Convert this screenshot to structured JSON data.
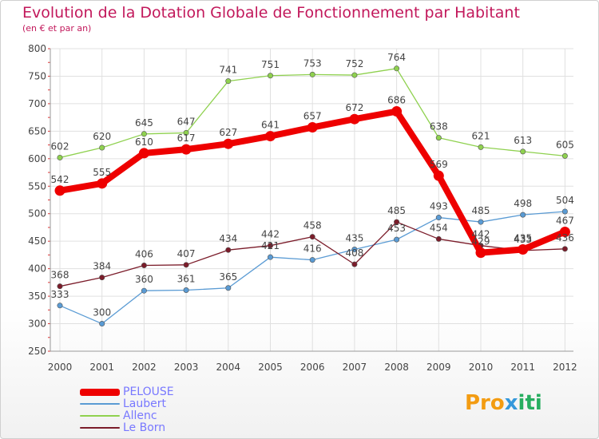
{
  "title": "Evolution de la Dotation Globale de Fonctionnement par Habitant",
  "subtitle": "(en € et par an)",
  "logo": {
    "text": "Proxiti"
  },
  "chart_data": {
    "type": "line",
    "title": "Evolution de la Dotation Globale de Fonctionnement par Habitant",
    "ylabel": "(en € et par an)",
    "xlabel": "",
    "categories": [
      "2000",
      "2001",
      "2002",
      "2003",
      "2004",
      "2005",
      "2006",
      "2007",
      "2008",
      "2009",
      "2010",
      "2011",
      "2012"
    ],
    "ylim": [
      250,
      800
    ],
    "yticks": [
      250,
      300,
      350,
      400,
      450,
      500,
      550,
      600,
      650,
      700,
      750,
      800
    ],
    "grid": true,
    "legend_position": "bottom-left",
    "series": [
      {
        "name": "Allenc",
        "color": "#8fd14f",
        "values": [
          602,
          620,
          645,
          647,
          741,
          751,
          753,
          752,
          764,
          638,
          621,
          613,
          605
        ]
      },
      {
        "name": "Laubert",
        "color": "#5a9bd4",
        "values": [
          333,
          300,
          360,
          361,
          365,
          421,
          416,
          435,
          453,
          493,
          485,
          498,
          504
        ]
      },
      {
        "name": "Le Born",
        "color": "#7b1c2a",
        "values": [
          368,
          384,
          406,
          407,
          434,
          442,
          458,
          408,
          485,
          454,
          442,
          433,
          436
        ]
      },
      {
        "name": "PELOUSE",
        "color": "#ee0000",
        "values": [
          542,
          555,
          610,
          617,
          627,
          641,
          657,
          672,
          686,
          569,
          429,
          435,
          467
        ]
      }
    ],
    "legend": [
      {
        "name": "PELOUSE",
        "color": "#ee0000",
        "text_color": "#7878ff"
      },
      {
        "name": "Laubert",
        "color": "#5a9bd4",
        "text_color": "#7878ff"
      },
      {
        "name": "Allenc",
        "color": "#8fd14f",
        "text_color": "#7878ff"
      },
      {
        "name": "Le Born",
        "color": "#7b1c2a",
        "text_color": "#7878ff"
      }
    ]
  }
}
